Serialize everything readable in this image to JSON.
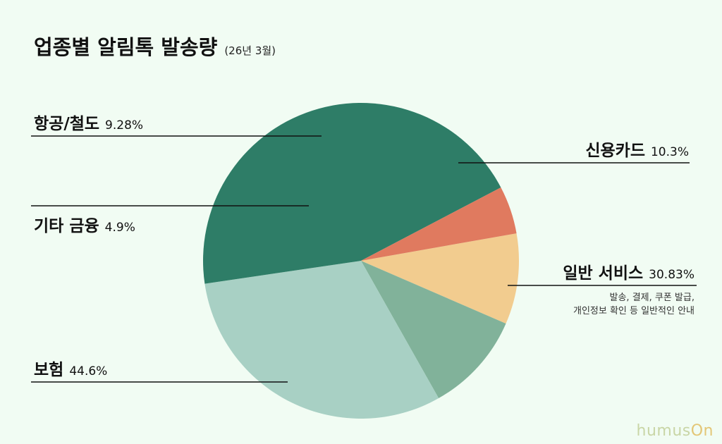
{
  "title": "업종별 알림톡 발송량",
  "subtitle": "(26년 3월)",
  "watermark": {
    "main": "humus",
    "accent": "On"
  },
  "colors": {
    "background": "#f1fcf3"
  },
  "chart_data": {
    "type": "pie",
    "title": "업종별 알림톡 발송량",
    "subtitle": "(26년 3월)",
    "slices": [
      {
        "label": "항공/철도",
        "value": 9.28,
        "value_label": "9.28%",
        "color": "#f2cc8f"
      },
      {
        "label": "신용카드",
        "value": 10.3,
        "value_label": "10.3%",
        "color": "#81b29a"
      },
      {
        "label": "일반 서비스",
        "value": 30.83,
        "value_label": "30.83%",
        "color": "#a8d0c4",
        "note": [
          "발송, 결제, 쿠폰 발급,",
          "개인정보 확인 등 일반적인 안내"
        ]
      },
      {
        "label": "보험",
        "value": 44.6,
        "value_label": "44.6%",
        "color": "#2e7d67"
      },
      {
        "label": "기타 금융",
        "value": 4.9,
        "value_label": "4.9%",
        "color": "#e07a5f"
      }
    ]
  }
}
